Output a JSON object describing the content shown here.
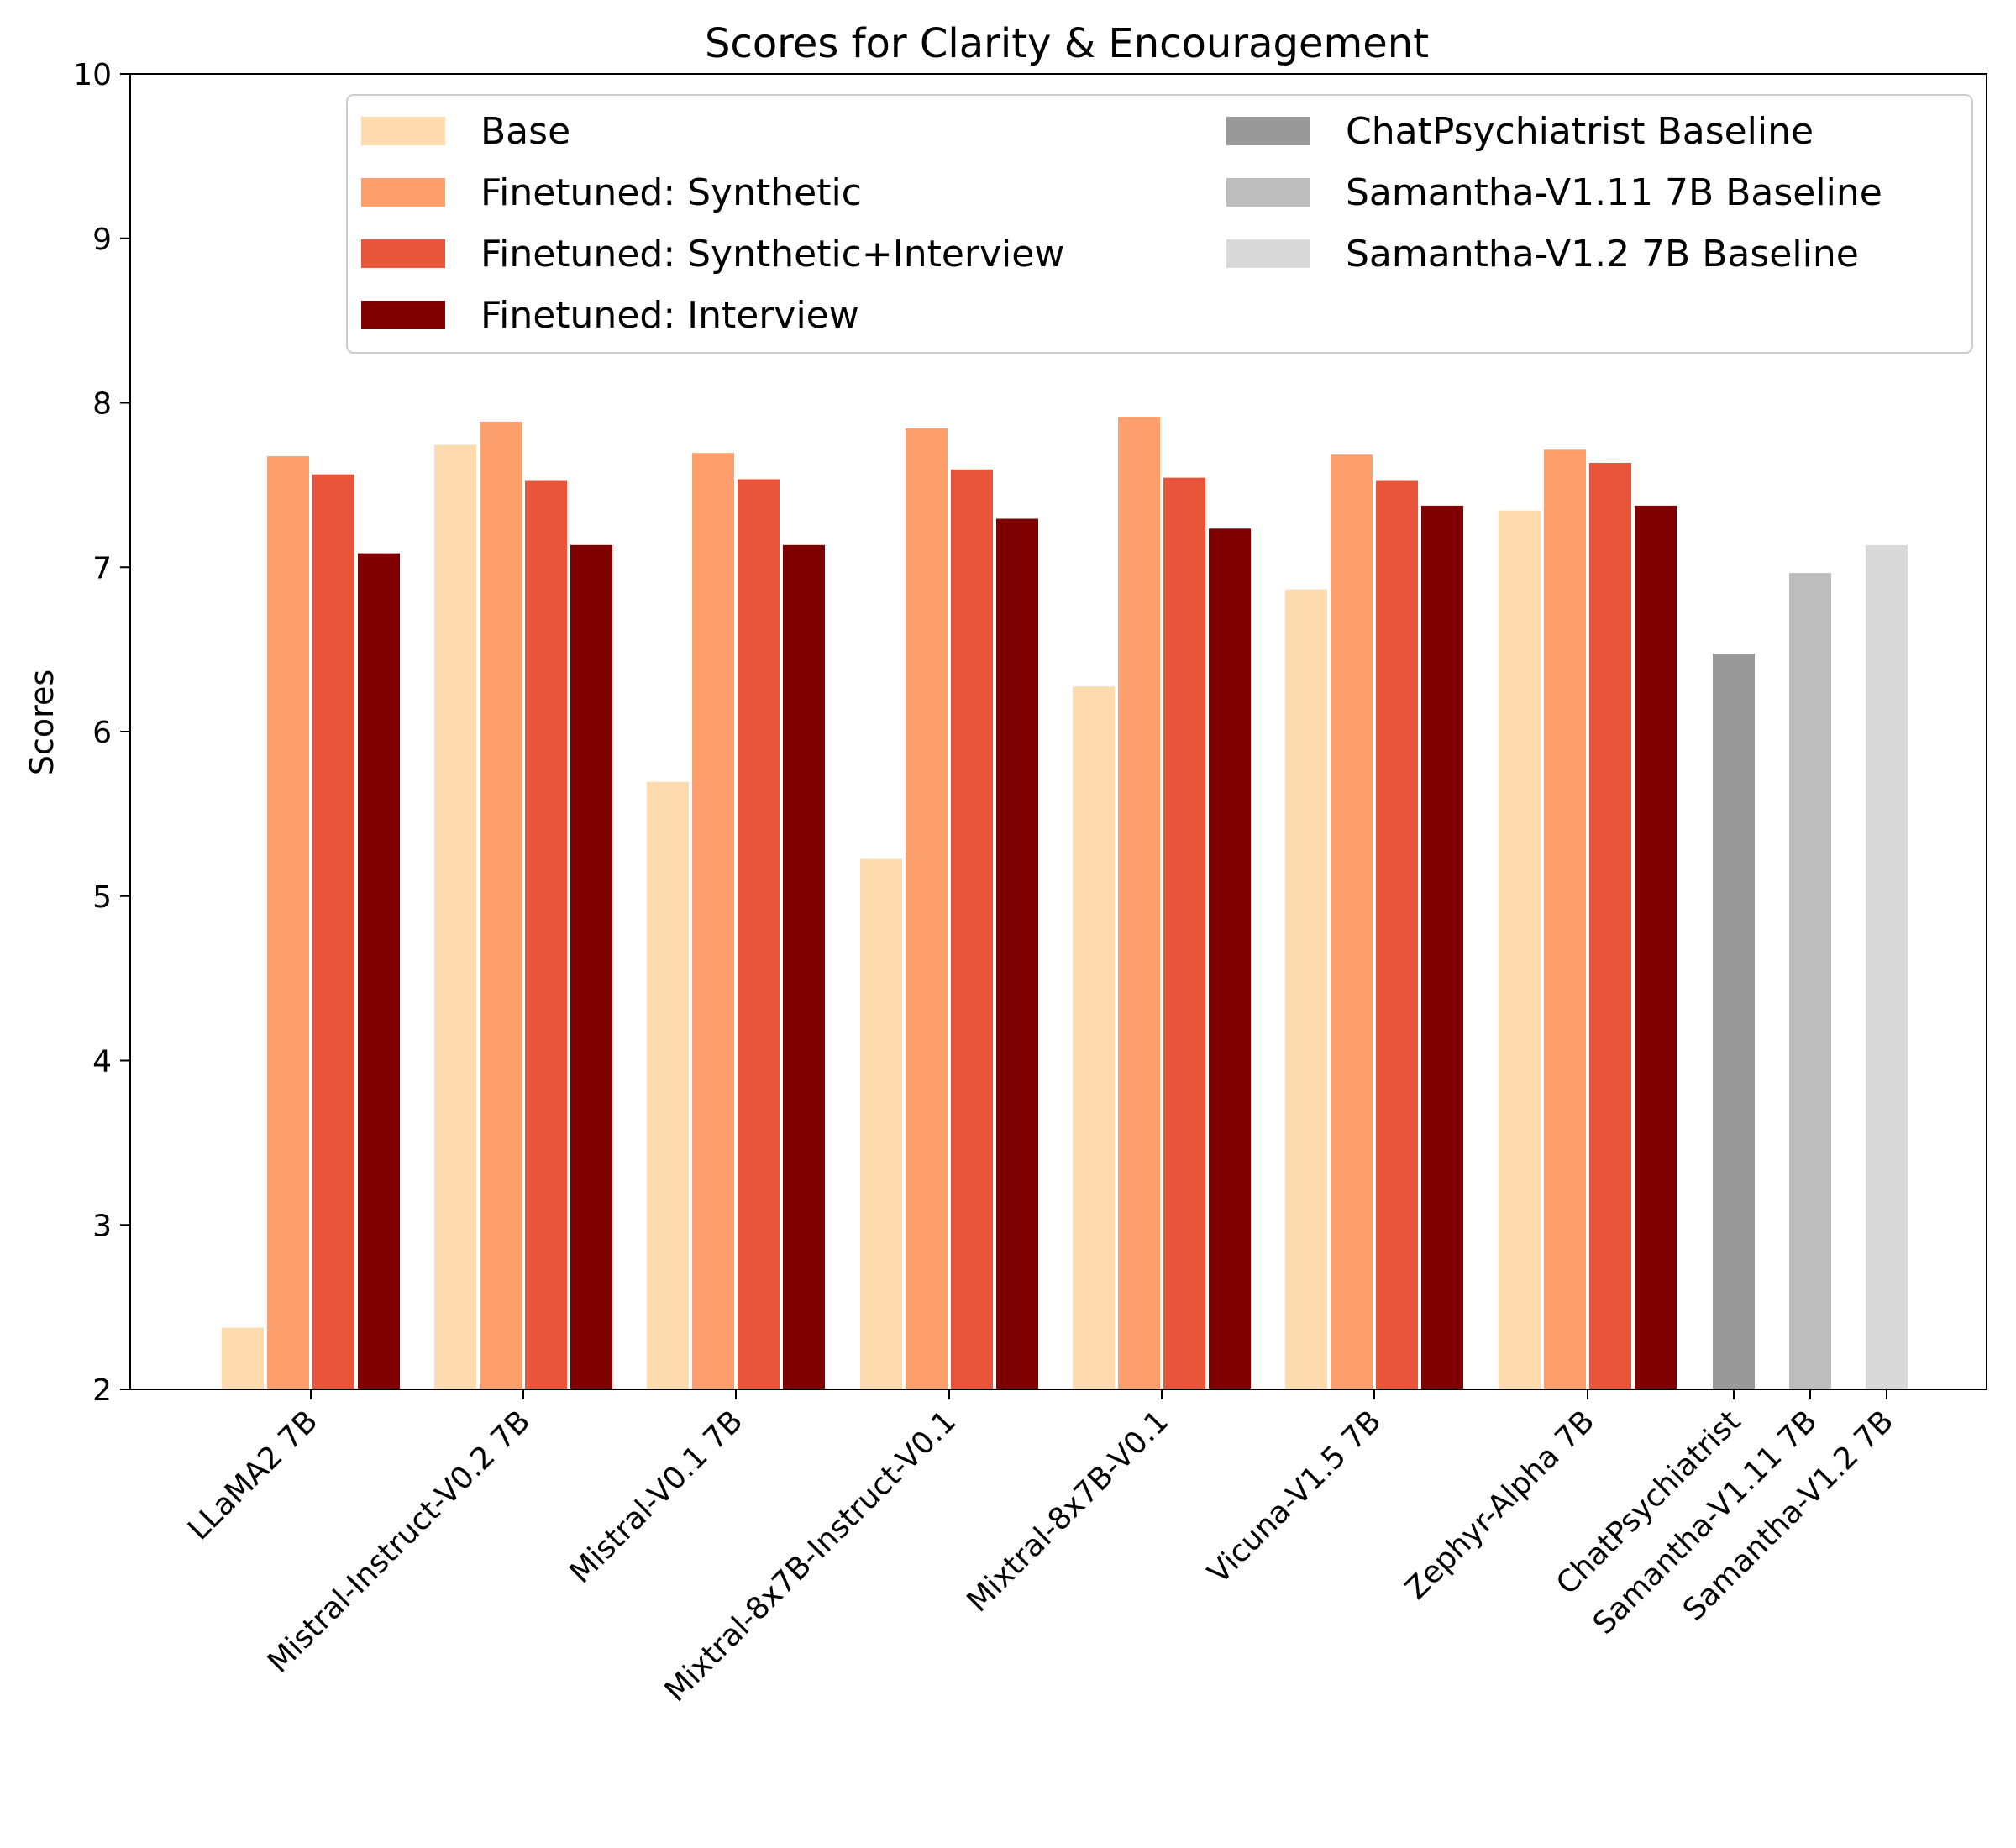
{
  "chart_data": {
    "type": "bar",
    "title": "Scores for Clarity & Encouragement",
    "xlabel": "",
    "ylabel": "Scores",
    "ylim": [
      2,
      10
    ],
    "yticks": [
      2,
      3,
      4,
      5,
      6,
      7,
      8,
      9,
      10
    ],
    "grid": false,
    "legend_position": "top-right",
    "categories": [
      "LLaMA2 7B",
      "Mistral-Instruct-V0.2 7B",
      "Mistral-V0.1 7B",
      "Mixtral-8x7B-Instruct-V0.1",
      "Mixtral-8x7B-V0.1",
      "Vicuna-V1.5 7B",
      "Zephyr-Alpha 7B",
      "ChatPsychiatrist",
      "Samantha-V1.11 7B",
      "Samantha-V1.2 7B"
    ],
    "series": [
      {
        "name": "Base",
        "color": "#fddbae",
        "values": [
          2.38,
          7.75,
          5.7,
          5.23,
          6.28,
          6.87,
          7.35,
          null,
          null,
          null
        ]
      },
      {
        "name": "Finetuned: Synthetic",
        "color": "#fc9f6c",
        "values": [
          7.68,
          7.89,
          7.7,
          7.85,
          7.92,
          7.69,
          7.72,
          null,
          null,
          null
        ]
      },
      {
        "name": "Finetuned: Synthetic+Interview",
        "color": "#e8553b",
        "values": [
          7.57,
          7.53,
          7.54,
          7.6,
          7.55,
          7.53,
          7.64,
          null,
          null,
          null
        ]
      },
      {
        "name": "Finetuned: Interview",
        "color": "#7f0000",
        "values": [
          7.09,
          7.14,
          7.14,
          7.3,
          7.24,
          7.38,
          7.38,
          null,
          null,
          null
        ]
      },
      {
        "name": "ChatPsychiatrist Baseline",
        "color": "#999999",
        "values": [
          null,
          null,
          null,
          null,
          null,
          null,
          null,
          6.48,
          null,
          null
        ]
      },
      {
        "name": "Samantha-V1.11 7B Baseline",
        "color": "#bdbdbd",
        "values": [
          null,
          null,
          null,
          null,
          null,
          null,
          null,
          null,
          6.97,
          null
        ]
      },
      {
        "name": "Samantha-V1.2 7B Baseline",
        "color": "#d9d9d9",
        "values": [
          null,
          null,
          null,
          null,
          null,
          null,
          null,
          null,
          null,
          7.14
        ]
      }
    ]
  }
}
